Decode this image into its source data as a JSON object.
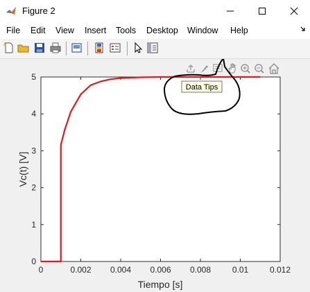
{
  "window": {
    "title": "Figure 2",
    "icon": "matlab-logo-icon"
  },
  "menu": [
    "File",
    "Edit",
    "View",
    "Insert",
    "Tools",
    "Desktop",
    "Window",
    "Help"
  ],
  "toolbar": {
    "buttons": [
      "new-figure-icon",
      "open-folder-icon",
      "save-icon",
      "print-icon",
      "link-plot-icon",
      "insert-colorbar-icon",
      "insert-legend-icon",
      "edit-plot-arrow-icon",
      "property-inspector-icon"
    ]
  },
  "axes_toolbar": {
    "buttons": [
      "export-icon",
      "brush-icon",
      "data-tips-icon",
      "pan-icon",
      "zoom-in-icon",
      "zoom-out-icon",
      "restore-view-icon"
    ]
  },
  "tooltip": {
    "text": "Data Tips"
  },
  "colors": {
    "line": "#e8161b",
    "annotation": "#000000"
  },
  "chart_data": {
    "type": "line",
    "xlabel": "Tiempo [s]",
    "ylabel": "Vc(t) [V]",
    "xlim": [
      0,
      0.012
    ],
    "ylim": [
      0,
      5
    ],
    "xticks": [
      0,
      0.002,
      0.004,
      0.006,
      0.008,
      0.01,
      0.012
    ],
    "xtick_labels": [
      "0",
      "0.002",
      "0.004",
      "0.006",
      "0.008",
      "0.01",
      "0.012"
    ],
    "yticks": [
      0,
      1,
      2,
      3,
      4,
      5
    ],
    "ytick_labels": [
      "0",
      "1",
      "2",
      "3",
      "4",
      "5"
    ],
    "grid": false,
    "series": [
      {
        "x": [
          0,
          0.001,
          0.001,
          0.0012,
          0.0015,
          0.002,
          0.0025,
          0.003,
          0.0035,
          0.004,
          0.005,
          0.006,
          0.007,
          0.008,
          0.009,
          0.01,
          0.011
        ],
        "y": [
          0,
          0,
          3.16,
          3.58,
          4.06,
          4.53,
          4.78,
          4.88,
          4.94,
          4.97,
          4.99,
          5.0,
          5.0,
          5.0,
          5.0,
          5.0,
          5.0
        ]
      }
    ]
  }
}
